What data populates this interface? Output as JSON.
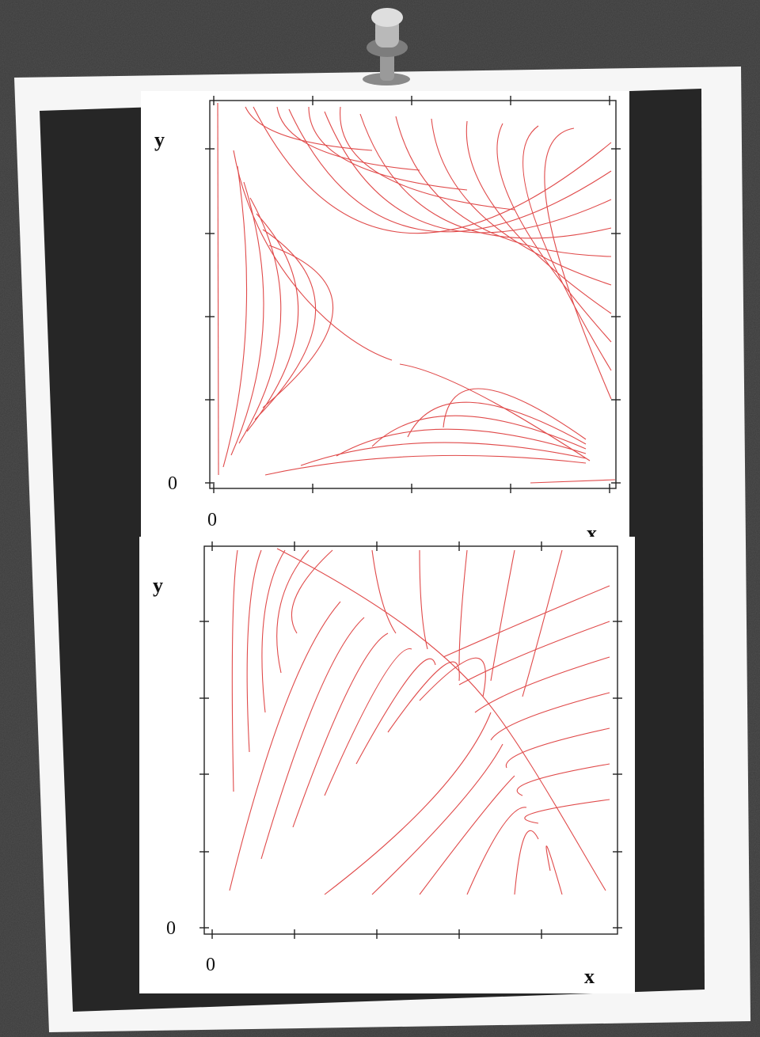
{
  "plots": [
    {
      "y_label": "y",
      "y_zero": "0",
      "x_zero": "0",
      "x_label": "x"
    },
    {
      "y_label": "y",
      "y_zero": "0",
      "x_zero": "0",
      "x_label": "x"
    }
  ]
}
